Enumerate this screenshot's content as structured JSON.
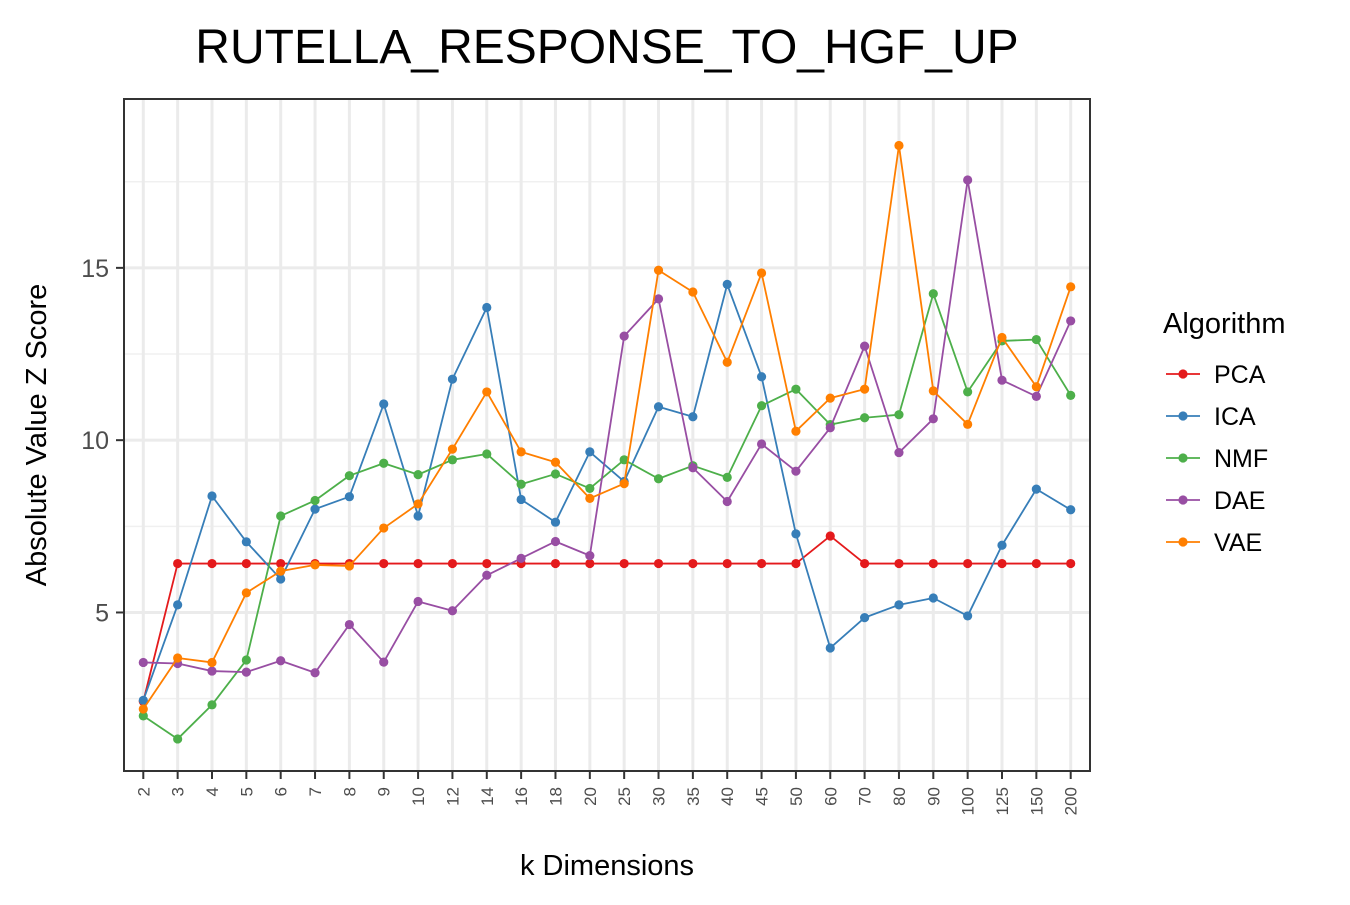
{
  "chart_data": {
    "type": "line",
    "title": "RUTELLA_RESPONSE_TO_HGF_UP",
    "xlabel": "k Dimensions",
    "ylabel": "Absolute Value Z Score",
    "categories": [
      "2",
      "3",
      "4",
      "5",
      "6",
      "7",
      "8",
      "9",
      "10",
      "12",
      "14",
      "16",
      "18",
      "20",
      "25",
      "30",
      "35",
      "40",
      "45",
      "50",
      "60",
      "70",
      "80",
      "90",
      "100",
      "125",
      "150",
      "200"
    ],
    "ylim": [
      0.4,
      19.9
    ],
    "yticks": [
      5,
      10,
      15
    ],
    "grid": true,
    "legend": {
      "title": "Algorithm",
      "position": "right"
    },
    "series": [
      {
        "name": "PCA",
        "color": "#e41a1c",
        "values": [
          2.42,
          6.42,
          6.42,
          6.42,
          6.42,
          6.42,
          6.42,
          6.42,
          6.42,
          6.42,
          6.42,
          6.42,
          6.42,
          6.42,
          6.42,
          6.42,
          6.42,
          6.42,
          6.42,
          6.42,
          7.22,
          6.42,
          6.42,
          6.42,
          6.42,
          6.42,
          6.42,
          6.42
        ]
      },
      {
        "name": "ICA",
        "color": "#377eb8",
        "values": [
          2.45,
          5.22,
          8.38,
          7.05,
          5.97,
          8.0,
          8.36,
          11.05,
          7.8,
          11.77,
          13.85,
          8.28,
          7.62,
          9.66,
          8.8,
          10.97,
          10.68,
          14.52,
          11.84,
          7.28,
          3.97,
          4.85,
          5.22,
          5.42,
          4.9,
          6.95,
          8.58,
          7.98
        ]
      },
      {
        "name": "NMF",
        "color": "#4daf4a",
        "values": [
          2.0,
          1.33,
          2.32,
          3.62,
          7.8,
          8.25,
          8.97,
          9.33,
          9.0,
          9.43,
          9.6,
          8.72,
          9.02,
          8.6,
          9.43,
          8.88,
          9.26,
          8.92,
          11.0,
          11.48,
          10.45,
          10.65,
          10.74,
          14.25,
          11.4,
          12.88,
          12.92,
          11.3
        ]
      },
      {
        "name": "DAE",
        "color": "#984ea3",
        "values": [
          3.55,
          3.52,
          3.3,
          3.27,
          3.6,
          3.25,
          4.65,
          3.56,
          5.32,
          5.05,
          6.08,
          6.57,
          7.06,
          6.65,
          13.02,
          14.1,
          9.2,
          8.22,
          9.89,
          9.1,
          10.36,
          12.73,
          9.64,
          10.62,
          17.55,
          11.74,
          11.27,
          13.46
        ]
      },
      {
        "name": "VAE",
        "color": "#ff7f00",
        "values": [
          2.2,
          3.68,
          3.55,
          5.57,
          6.2,
          6.38,
          6.35,
          7.45,
          8.15,
          9.74,
          11.4,
          9.66,
          9.36,
          8.31,
          8.74,
          14.93,
          14.3,
          12.26,
          14.85,
          10.26,
          11.22,
          11.48,
          18.55,
          11.43,
          10.46,
          12.98,
          11.55,
          14.45
        ]
      }
    ]
  }
}
